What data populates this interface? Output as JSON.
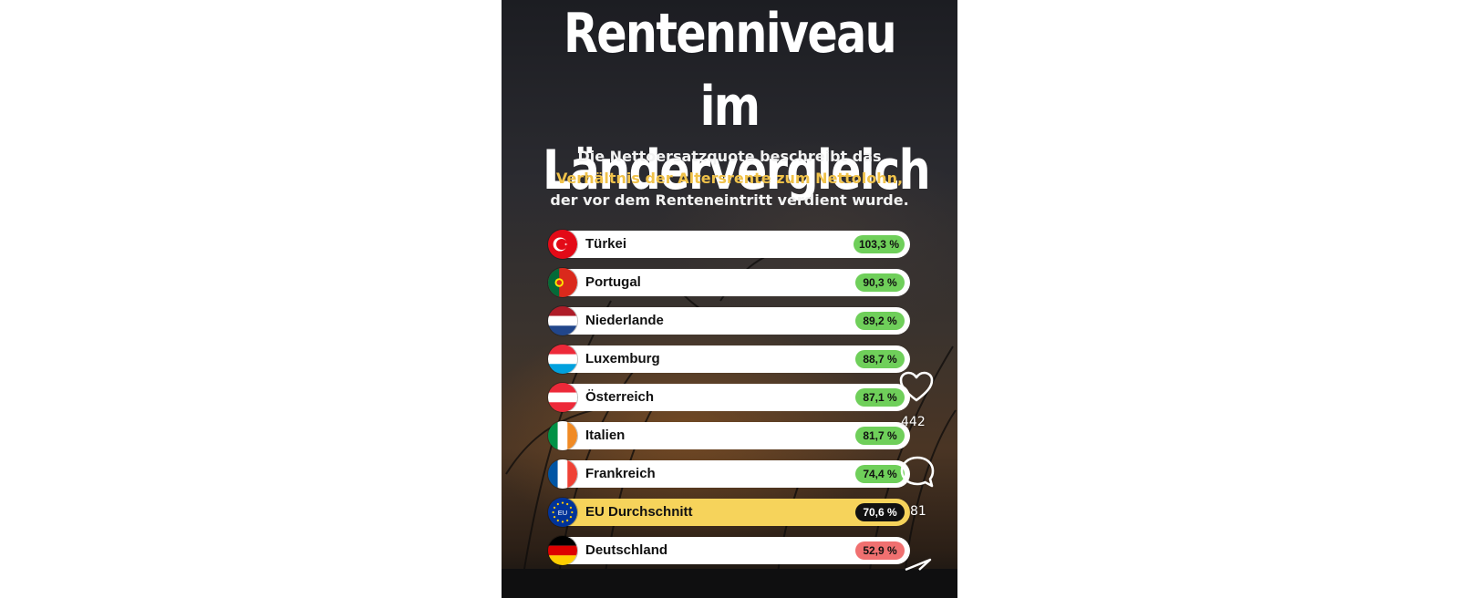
{
  "post": {
    "title_line1": "Rentenniveau",
    "title_line2": "im Ländervergleich",
    "sub_line1": "Die Nettoersatzquote beschreibt das",
    "sub_line2": "Verhältnis der Altersrente zum Nettolohn,",
    "sub_line3": "der vor dem Renteneintritt verdient wurde.",
    "highlight_color": "#f0c24a"
  },
  "rows": [
    {
      "country": "Türkei",
      "value": "103,3 %",
      "flag": "turkey-flag-icon"
    },
    {
      "country": "Portugal",
      "value": "90,3 %",
      "flag": "portugal-flag-icon"
    },
    {
      "country": "Niederlande",
      "value": "89,2 %",
      "flag": "netherlands-flag-icon"
    },
    {
      "country": "Luxemburg",
      "value": "88,7 %",
      "flag": "luxembourg-flag-icon"
    },
    {
      "country": "Österreich",
      "value": "87,1 %",
      "flag": "austria-flag-icon"
    },
    {
      "country": "Italien",
      "value": "81,7 %",
      "flag": "italy-flag-icon"
    },
    {
      "country": "Frankreich",
      "value": "74,4 %",
      "flag": "france-flag-icon"
    },
    {
      "country": "EU Durchschnitt",
      "value": "70,6 %",
      "flag": "eu-flag-icon",
      "eu_label": "EU"
    },
    {
      "country": "Deutschland",
      "value": "52,9 %",
      "flag": "germany-flag-icon"
    }
  ],
  "colors": {
    "pill_green": "#6fcf5a",
    "pill_red": "#f07070",
    "eu_row": "#f6d35b"
  },
  "actions": {
    "likes": "442",
    "comments": "81",
    "like_icon": "heart-icon",
    "comment_icon": "comment-bubble-icon",
    "share_icon": "share-icon"
  }
}
